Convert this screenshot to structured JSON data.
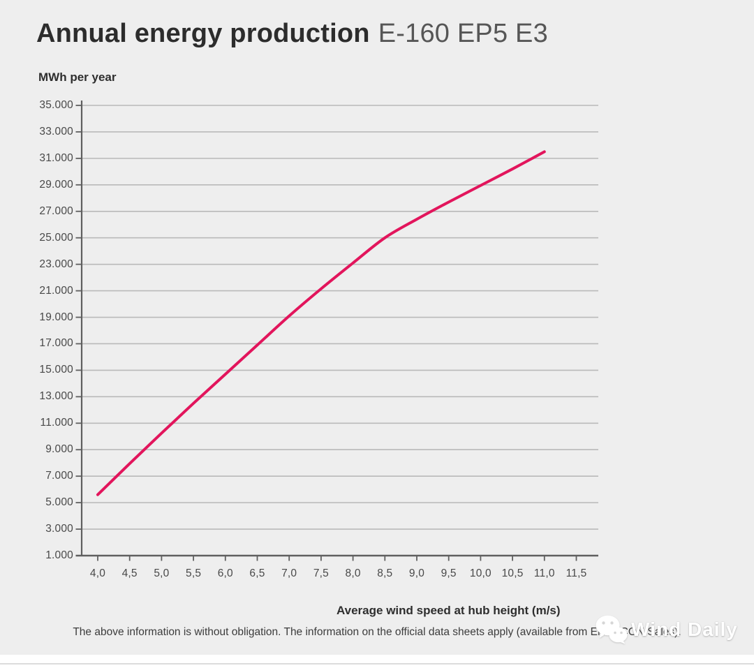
{
  "page": {
    "background_color": "#eeeeee"
  },
  "header": {
    "title": "Annual energy production",
    "model": "E-160 EP5 E3"
  },
  "chart_data": {
    "type": "line",
    "title": "Annual energy production E-160 EP5 E3",
    "ylabel": "MWh per year",
    "xlabel": "Average wind speed at hub height (m/s)",
    "x": [
      4.0,
      4.5,
      5.0,
      5.5,
      6.0,
      6.5,
      7.0,
      7.5,
      8.0,
      8.5,
      9.0,
      9.5,
      10.0,
      10.5,
      11.0
    ],
    "values": [
      5600,
      7950,
      10250,
      12500,
      14700,
      16900,
      19100,
      21150,
      23100,
      25000,
      26400,
      27700,
      28950,
      30200,
      31500
    ],
    "series_name": "Annual energy production (MWh per year)",
    "x_tick_values": [
      4.0,
      4.5,
      5.0,
      5.5,
      6.0,
      6.5,
      7.0,
      7.5,
      8.0,
      8.5,
      9.0,
      9.5,
      10.0,
      10.5,
      11.0,
      11.5
    ],
    "x_tick_labels": [
      "4,0",
      "4,5",
      "5,0",
      "5,5",
      "6,0",
      "6,5",
      "7,0",
      "7,5",
      "8,0",
      "8,5",
      "9,0",
      "9,5",
      "10,0",
      "10,5",
      "11,0",
      "11,5"
    ],
    "y_tick_values": [
      1000,
      3000,
      5000,
      7000,
      9000,
      11000,
      13000,
      15000,
      17000,
      19000,
      21000,
      23000,
      25000,
      27000,
      29000,
      31000,
      33000,
      35000
    ],
    "y_tick_labels": [
      "1.000",
      "3.000",
      "5.000",
      "7.000",
      "9.000",
      "11.000",
      "13.000",
      "15.000",
      "17.000",
      "19.000",
      "21.000",
      "23.000",
      "25.000",
      "27.000",
      "29.000",
      "31.000",
      "33.000",
      "35.000"
    ],
    "ylim": [
      1000,
      35000
    ],
    "xlim": [
      4.0,
      11.85
    ],
    "grid": "horizontal",
    "legend": "none",
    "line_color": "#e2155c",
    "grid_color": "#b9b9b9",
    "axis_color": "#5f5f5f"
  },
  "footer": {
    "disclaimer": "The above information is without obligation. The information on the official data sheets apply (available from ENERCON Sales).",
    "watermark_text": "Wind Daily"
  }
}
